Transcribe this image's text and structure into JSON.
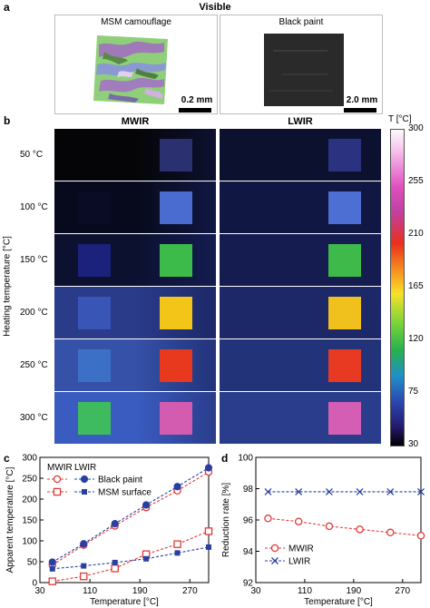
{
  "panel_a": {
    "letter": "a",
    "title": "Visible",
    "left_label": "MSM camouflage",
    "left_scale": "0.2 mm",
    "right_label": "Black paint",
    "right_scale": "2.0 mm"
  },
  "panel_b": {
    "letter": "b",
    "col_mwir": "MWIR",
    "col_lwir": "LWIR",
    "y_title": "Heating temperature [°C]",
    "rows": [
      "50 °C",
      "100 °C",
      "150 °C",
      "200 °C",
      "250 °C",
      "300 °C"
    ],
    "colorbar_title": "T [°C]",
    "colorbar_ticks": [
      "300",
      "255",
      "210",
      "165",
      "120",
      "75",
      "30"
    ],
    "colors": {
      "mwir_bg": [
        "#050507",
        "#070a1c",
        "#0c1130",
        "#2a3b8a",
        "#3551a8",
        "#3a5cc0"
      ],
      "mwir_left": [
        "#050507",
        "#0a0d25",
        "#1c2480",
        "#3a56b8",
        "#3d72c8",
        "#3ec05a"
      ],
      "mwir_right": [
        "#2a3070",
        "#4a6cd0",
        "#3dbb4a",
        "#f2c518",
        "#e8381e",
        "#d35cb0"
      ],
      "lwir_bg": [
        "#0c1130",
        "#101742",
        "#141c50",
        "#1c2868",
        "#22337a",
        "#2a3d8c"
      ],
      "lwir_right": [
        "#2b3380",
        "#4d6ed2",
        "#3eba4a",
        "#f0c01c",
        "#e83a22",
        "#d35eb4"
      ]
    }
  },
  "chart_data": [
    {
      "type": "line",
      "panel_letter": "c",
      "xlabel": "Temperature [°C]",
      "ylabel": "Apparent temperature [°C]",
      "xlim": [
        30,
        300
      ],
      "ylim": [
        0,
        300
      ],
      "x_ticks": [
        30,
        110,
        190,
        270
      ],
      "y_ticks": [
        0,
        50,
        100,
        150,
        200,
        250,
        300
      ],
      "legend_headers": [
        "MWIR",
        "LWIR"
      ],
      "legend_rows": [
        "Black paint",
        "MSM surface"
      ],
      "x": [
        50,
        100,
        150,
        200,
        250,
        300
      ],
      "series": [
        {
          "name": "Black paint",
          "band": "MWIR",
          "marker": "open-circle",
          "color": "#e03a3a",
          "values": [
            42,
            90,
            136,
            180,
            220,
            265
          ]
        },
        {
          "name": "Black paint",
          "band": "LWIR",
          "marker": "filled-circle",
          "color": "#2a3fa0",
          "values": [
            49,
            93,
            141,
            186,
            230,
            275
          ]
        },
        {
          "name": "MSM surface",
          "band": "MWIR",
          "marker": "open-square",
          "color": "#e03a3a",
          "values": [
            3,
            15,
            34,
            68,
            92,
            123
          ]
        },
        {
          "name": "MSM surface",
          "band": "LWIR",
          "marker": "filled-square",
          "color": "#2a3fa0",
          "values": [
            33,
            40,
            48,
            57,
            71,
            85
          ]
        }
      ]
    },
    {
      "type": "line",
      "panel_letter": "d",
      "xlabel": "Temperature [°C]",
      "ylabel": "Reduction rate [%]",
      "xlim": [
        30,
        300
      ],
      "ylim": [
        92,
        100
      ],
      "x_ticks": [
        30,
        110,
        190,
        270
      ],
      "y_ticks": [
        92,
        94,
        96,
        98,
        100
      ],
      "x": [
        50,
        100,
        150,
        200,
        250,
        300
      ],
      "series": [
        {
          "name": "MWIR",
          "marker": "open-circle",
          "color": "#e03a3a",
          "values": [
            96.1,
            95.9,
            95.6,
            95.4,
            95.2,
            95.0
          ]
        },
        {
          "name": "LWIR",
          "marker": "x",
          "color": "#2a3fa0",
          "values": [
            97.8,
            97.8,
            97.8,
            97.8,
            97.8,
            97.8
          ]
        }
      ]
    }
  ]
}
